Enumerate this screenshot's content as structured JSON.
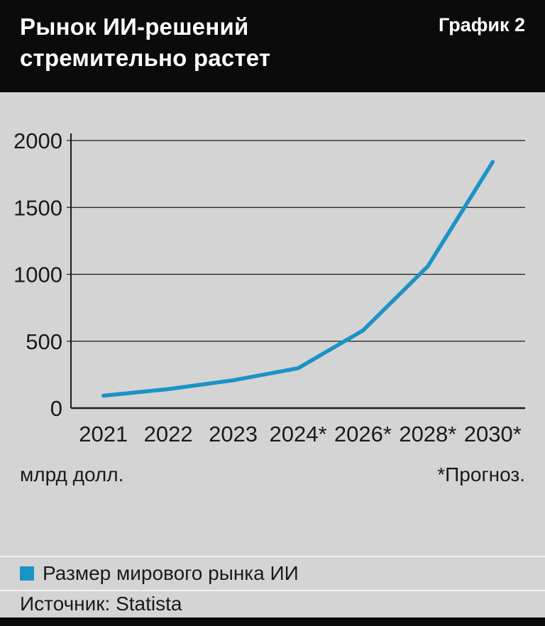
{
  "header": {
    "title_line1": "Рынок ИИ-решений",
    "title_line2": "стремительно растет",
    "chart_label": "График 2"
  },
  "chart_data": {
    "type": "line",
    "categories": [
      "2021",
      "2022",
      "2023",
      "2024*",
      "2026*",
      "2028*",
      "2030*"
    ],
    "series": [
      {
        "name": "Размер мирового рынка ИИ",
        "values": [
          93,
          142,
          208,
          298,
          580,
          1060,
          1840
        ],
        "color": "#1a93c6"
      }
    ],
    "title": "Рынок ИИ-решений стремительно растет",
    "xlabel": "",
    "ylabel": "млрд долл.",
    "ylim": [
      0,
      2000
    ],
    "yticks": [
      0,
      500,
      1000,
      1500,
      2000
    ],
    "grid": true,
    "legend_position": "bottom"
  },
  "footnotes": {
    "unit_label": "млрд долл.",
    "forecast_note": "*Прогноз."
  },
  "legend": {
    "label": "Размер мирового рынка ИИ"
  },
  "source": {
    "label": "Источник: Statista"
  },
  "colors": {
    "line": "#1a93c6",
    "background": "#d4d4d4",
    "header": "#0b0b0b"
  }
}
